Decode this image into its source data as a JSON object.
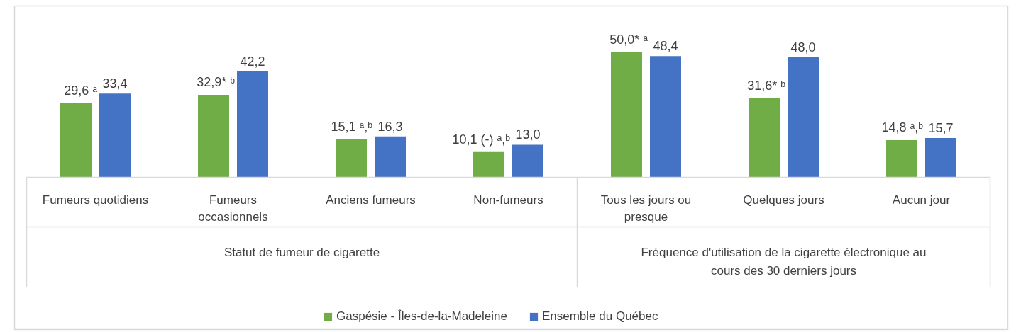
{
  "chart_data": {
    "type": "bar",
    "categories": [
      "Fumeurs quotidiens",
      "Fumeurs occasionnels",
      "Anciens fumeurs",
      "Non-fumeurs",
      "Tous les jours ou presque",
      "Quelques jours",
      "Aucun jour"
    ],
    "series": [
      {
        "name": "Gaspésie - Îles-de-la-Madeleine",
        "color": "#70ad47",
        "values": [
          29.6,
          32.9,
          15.1,
          10.1,
          50.0,
          31.6,
          14.8
        ],
        "value_labels": [
          "29,6 ᵃ",
          "32,9* ᵇ",
          "15,1 ᵃ,ᵇ",
          "10,1 (-) ᵃ,ᵇ",
          "50,0* ᵃ",
          "31,6* ᵇ",
          "14,8 ᵃ,ᵇ"
        ]
      },
      {
        "name": "Ensemble du Québec",
        "color": "#4472c4",
        "values": [
          33.4,
          42.2,
          16.3,
          13.0,
          48.4,
          48.0,
          15.7
        ],
        "value_labels": [
          "33,4",
          "42,2",
          "16,3",
          "13,0",
          "48,4",
          "48,0",
          "15,7"
        ]
      }
    ],
    "annotations": [
      "Statut de fumeur de cigarette",
      "Fréquence d'utilisation de la cigarette électronique au cours des 30 derniers jours"
    ],
    "legend": "bottom",
    "grid": false
  }
}
